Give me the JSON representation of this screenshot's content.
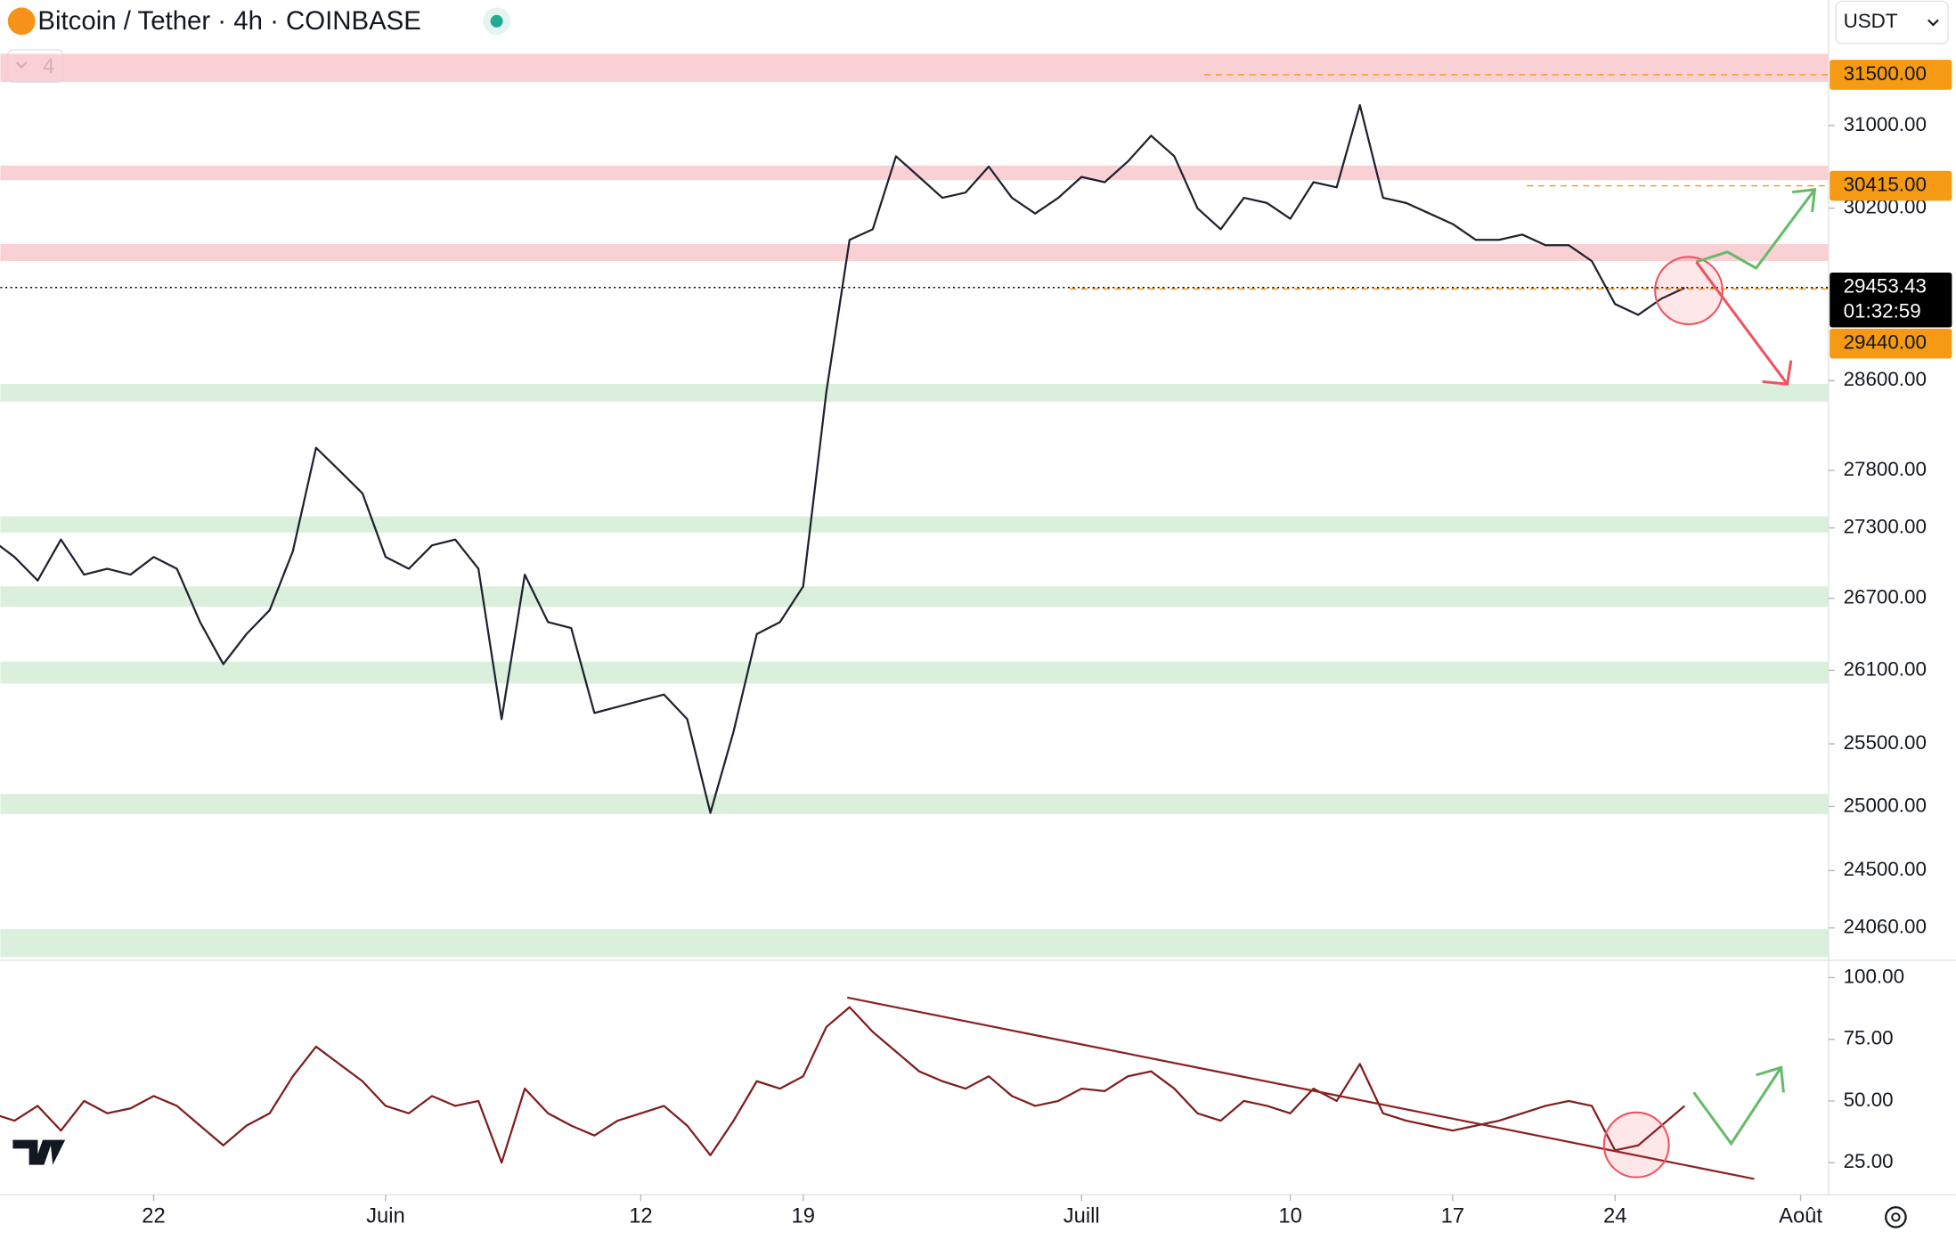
{
  "toolbar": {
    "quote": "USDT",
    "indicators": "4"
  },
  "chart_data": [
    {
      "type": "line",
      "title": "Bitcoin / Tether · 4h · COINBASE",
      "log_scale": true,
      "color": "#1e222d",
      "x": [
        0,
        1,
        2,
        3,
        4,
        5,
        6,
        7,
        8,
        9,
        10,
        11,
        12,
        13,
        14,
        15,
        16,
        17,
        18,
        19,
        20,
        21,
        22,
        23,
        24,
        25,
        26,
        27,
        28,
        29,
        30,
        31,
        32,
        33,
        34,
        35,
        36,
        37,
        38,
        39,
        40,
        41,
        42,
        43,
        44,
        45,
        46,
        47,
        48,
        49,
        50,
        51,
        52,
        53,
        54,
        55,
        56,
        57,
        58,
        59,
        60,
        61,
        62,
        63,
        64,
        65,
        66,
        67,
        68,
        69,
        70,
        71,
        72,
        73
      ],
      "values": [
        27200,
        27050,
        26850,
        27200,
        26900,
        26950,
        26900,
        27050,
        26950,
        26500,
        26150,
        26400,
        26600,
        27100,
        28000,
        27800,
        27600,
        27050,
        26950,
        27150,
        27200,
        26950,
        25700,
        26900,
        26500,
        26450,
        25750,
        25800,
        25850,
        25900,
        25700,
        24950,
        25600,
        26400,
        26500,
        26800,
        28500,
        29900,
        30000,
        30700,
        30500,
        30300,
        30350,
        30600,
        30300,
        30150,
        30300,
        30500,
        30450,
        30650,
        30900,
        30700,
        30200,
        30000,
        30300,
        30250,
        30100,
        30450,
        30400,
        31200,
        30300,
        30250,
        30150,
        30050,
        29900,
        29900,
        29950,
        29850,
        29850,
        29700,
        29300,
        29200,
        29350,
        29450
      ],
      "xlim": [
        0.39,
        79.2
      ],
      "ylim": [
        23834,
        31749
      ],
      "xticks": [
        {
          "value": 7,
          "label": "22"
        },
        {
          "value": 17,
          "label": "Juin"
        },
        {
          "value": 28,
          "label": "12"
        },
        {
          "value": 35,
          "label": "19"
        },
        {
          "value": 47,
          "label": "Juill"
        },
        {
          "value": 56,
          "label": "10"
        },
        {
          "value": 63,
          "label": "17"
        },
        {
          "value": 70,
          "label": "24"
        },
        {
          "value": 78,
          "label": "Août"
        }
      ],
      "yticks": [
        {
          "value": 31000,
          "label": "31000.00"
        },
        {
          "value": 30200,
          "label": "30200.00"
        },
        {
          "value": 28600,
          "label": "28600.00"
        },
        {
          "value": 27800,
          "label": "27800.00"
        },
        {
          "value": 27300,
          "label": "27300.00"
        },
        {
          "value": 26700,
          "label": "26700.00"
        },
        {
          "value": 26100,
          "label": "26100.00"
        },
        {
          "value": 25500,
          "label": "25500.00"
        },
        {
          "value": 25000,
          "label": "25000.00"
        },
        {
          "value": 24500,
          "label": "24500.00"
        },
        {
          "value": 24060,
          "label": "24060.00"
        }
      ],
      "zones": [
        {
          "color": "#f8c9cd",
          "range": [
            31430,
            31710
          ]
        },
        {
          "color": "#f8c9cd",
          "range": [
            30470,
            30610
          ]
        },
        {
          "color": "#f8c9cd",
          "range": [
            29700,
            29860
          ]
        },
        {
          "color": "#d3ecd6",
          "range": [
            28410,
            28570
          ]
        },
        {
          "color": "#d3ecd6",
          "range": [
            27260,
            27400
          ]
        },
        {
          "color": "#d3ecd6",
          "range": [
            26630,
            26800
          ]
        },
        {
          "color": "#d3ecd6",
          "range": [
            25990,
            26170
          ]
        },
        {
          "color": "#d3ecd6",
          "range": [
            24940,
            25100
          ]
        },
        {
          "color": "#d3ecd6",
          "range": [
            23840,
            24050
          ]
        }
      ],
      "price_markers": [
        {
          "value": 31500,
          "label": "31500.00",
          "color": "#f59a12",
          "from": 52.3
        },
        {
          "value": 30415,
          "label": "30415.00",
          "color": "#f59a12",
          "from": 66.2
        },
        {
          "value": 29453.43,
          "label": "29453.43",
          "sublabel": "01:32:59",
          "color": "#000000"
        },
        {
          "value": 29440,
          "label": "29440.00",
          "color": "#f59a12",
          "from": 46.5
        }
      ]
    },
    {
      "type": "line",
      "color": "#7f1d1d",
      "x": [
        0,
        1,
        2,
        3,
        4,
        5,
        6,
        7,
        8,
        9,
        10,
        11,
        12,
        13,
        14,
        15,
        16,
        17,
        18,
        19,
        20,
        21,
        22,
        23,
        24,
        25,
        26,
        27,
        28,
        29,
        30,
        31,
        32,
        33,
        34,
        35,
        36,
        37,
        38,
        39,
        40,
        41,
        42,
        43,
        44,
        45,
        46,
        47,
        48,
        49,
        50,
        51,
        52,
        53,
        54,
        55,
        56,
        57,
        58,
        59,
        60,
        61,
        62,
        63,
        64,
        65,
        66,
        67,
        68,
        69,
        70,
        71,
        72,
        73
      ],
      "values": [
        45,
        42,
        48,
        38,
        50,
        45,
        47,
        52,
        48,
        40,
        32,
        40,
        45,
        60,
        72,
        65,
        58,
        48,
        45,
        52,
        48,
        50,
        25,
        55,
        45,
        40,
        36,
        42,
        45,
        48,
        40,
        28,
        42,
        58,
        55,
        60,
        80,
        88,
        78,
        70,
        62,
        58,
        55,
        60,
        52,
        48,
        50,
        55,
        54,
        60,
        62,
        55,
        45,
        42,
        50,
        48,
        45,
        55,
        50,
        65,
        45,
        42,
        40,
        38,
        40,
        42,
        45,
        48,
        50,
        48,
        30,
        32,
        40,
        48
      ],
      "ylim": [
        12,
        107
      ],
      "yticks": [
        {
          "value": 100,
          "label": "100.00"
        },
        {
          "value": 75,
          "label": "75.00"
        },
        {
          "value": 50,
          "label": "50.00"
        },
        {
          "value": 25,
          "label": "25.00"
        }
      ],
      "trendline": {
        "color": "#8b2323",
        "x": [
          36.9,
          76
        ],
        "values": [
          91.9,
          18.4
        ]
      }
    }
  ]
}
